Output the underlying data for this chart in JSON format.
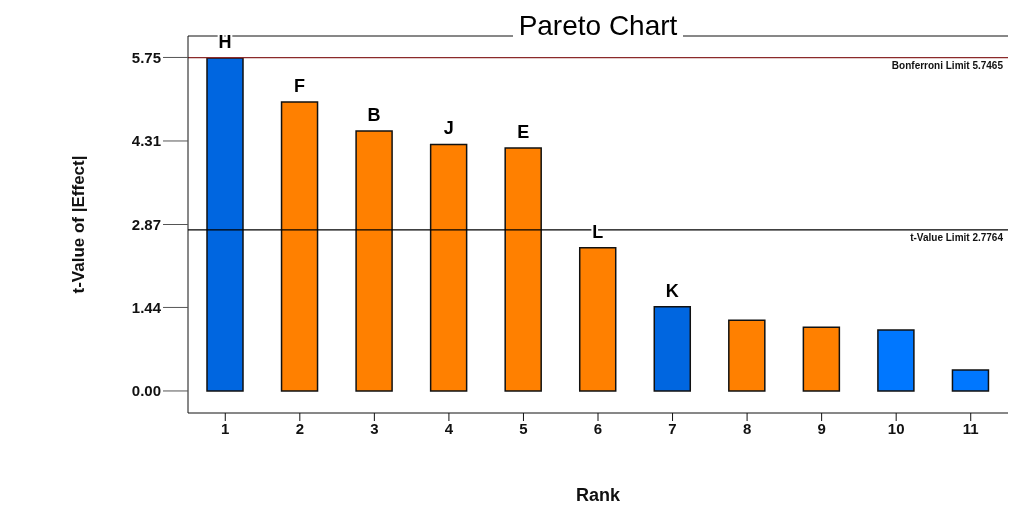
{
  "chart_data": {
    "type": "bar",
    "title": "Pareto Chart",
    "xlabel": "Rank",
    "ylabel": "t-Value of |Effect|",
    "categories": [
      "1",
      "2",
      "3",
      "4",
      "5",
      "6",
      "7",
      "8",
      "9",
      "10",
      "11"
    ],
    "values": [
      5.74,
      4.98,
      4.48,
      4.25,
      4.19,
      2.47,
      1.45,
      1.22,
      1.1,
      1.05,
      0.36
    ],
    "colors": [
      "#0066e0",
      "#ff8000",
      "#ff8000",
      "#ff8000",
      "#ff8000",
      "#ff8000",
      "#0066e0",
      "#ff8000",
      "#ff8000",
      "#0077ff",
      "#0077ff"
    ],
    "value_labels": [
      "H",
      "F",
      "B",
      "J",
      "E",
      "L",
      "K",
      null,
      null,
      null,
      null
    ],
    "ylim": [
      -0.38,
      6.12
    ],
    "yticks": [
      {
        "value": 0,
        "label": "0.00"
      },
      1.44,
      2.87,
      4.31,
      5.75
    ],
    "ref_lines": [
      {
        "axis": "y",
        "value": 5.7465,
        "label": "Bonferroni Limit 5.7465",
        "color": "#8b2a2a"
      },
      {
        "axis": "y",
        "value": 2.7764,
        "label": "t-Value Limit 2.7764",
        "color": "#000000"
      }
    ],
    "grid": false,
    "legend": false
  }
}
